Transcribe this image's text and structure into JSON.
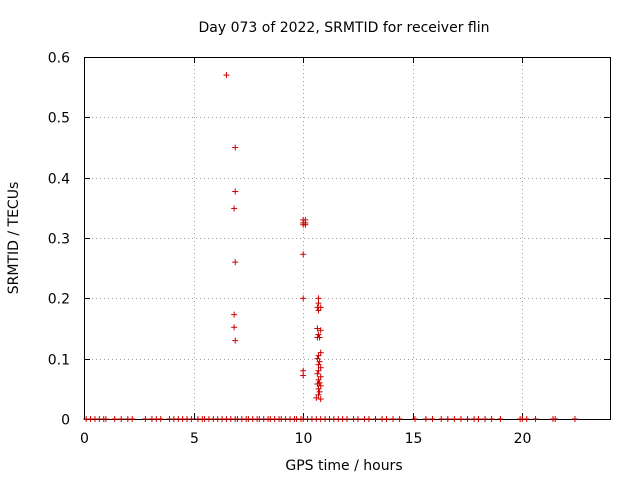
{
  "chart_data": {
    "type": "scatter",
    "title": "Day 073 of 2022, SRMTID for receiver flin",
    "xlabel": "GPS time / hours",
    "ylabel": "SRMTID / TECUs",
    "xlim": [
      0,
      24
    ],
    "ylim": [
      0,
      0.6
    ],
    "xticks": [
      0,
      5,
      10,
      15,
      20
    ],
    "yticks": [
      0,
      0.1,
      0.2,
      0.3,
      0.4,
      0.5,
      0.6
    ],
    "grid": true,
    "marker": "+",
    "color": "#cc0000",
    "series": [
      {
        "name": "SRMTID",
        "points": [
          [
            6.5,
            0.57
          ],
          [
            6.9,
            0.45
          ],
          [
            6.9,
            0.377
          ],
          [
            6.85,
            0.349
          ],
          [
            6.9,
            0.26
          ],
          [
            6.85,
            0.173
          ],
          [
            6.85,
            0.152
          ],
          [
            6.9,
            0.13
          ],
          [
            10.0,
            0.33
          ],
          [
            10.1,
            0.33
          ],
          [
            10.0,
            0.325
          ],
          [
            10.1,
            0.325
          ],
          [
            10.0,
            0.322
          ],
          [
            10.1,
            0.322
          ],
          [
            10.0,
            0.273
          ],
          [
            10.0,
            0.2
          ],
          [
            10.0,
            0.08
          ],
          [
            10.0,
            0.072
          ],
          [
            10.7,
            0.2
          ],
          [
            10.7,
            0.192
          ],
          [
            10.65,
            0.185
          ],
          [
            10.8,
            0.185
          ],
          [
            10.7,
            0.18
          ],
          [
            10.65,
            0.15
          ],
          [
            10.8,
            0.147
          ],
          [
            10.7,
            0.14
          ],
          [
            10.75,
            0.135
          ],
          [
            10.65,
            0.135
          ],
          [
            10.8,
            0.11
          ],
          [
            10.7,
            0.105
          ],
          [
            10.65,
            0.1
          ],
          [
            10.75,
            0.095
          ],
          [
            10.7,
            0.09
          ],
          [
            10.8,
            0.085
          ],
          [
            10.7,
            0.08
          ],
          [
            10.65,
            0.075
          ],
          [
            10.8,
            0.07
          ],
          [
            10.7,
            0.065
          ],
          [
            10.75,
            0.06
          ],
          [
            10.65,
            0.058
          ],
          [
            10.8,
            0.055
          ],
          [
            10.7,
            0.05
          ],
          [
            10.75,
            0.045
          ],
          [
            10.7,
            0.04
          ],
          [
            10.6,
            0.035
          ],
          [
            10.8,
            0.033
          ],
          [
            0.1,
            0
          ],
          [
            0.3,
            0
          ],
          [
            0.5,
            0
          ],
          [
            0.7,
            0
          ],
          [
            0.9,
            0
          ],
          [
            1.0,
            0
          ],
          [
            1.4,
            0
          ],
          [
            1.7,
            0
          ],
          [
            2.0,
            0
          ],
          [
            2.2,
            0
          ],
          [
            2.8,
            0
          ],
          [
            3.1,
            0
          ],
          [
            3.3,
            0
          ],
          [
            3.5,
            0
          ],
          [
            3.9,
            0
          ],
          [
            4.1,
            0
          ],
          [
            4.3,
            0
          ],
          [
            4.5,
            0
          ],
          [
            4.7,
            0
          ],
          [
            4.9,
            0
          ],
          [
            5.2,
            0
          ],
          [
            5.4,
            0
          ],
          [
            5.5,
            0
          ],
          [
            5.7,
            0
          ],
          [
            5.9,
            0
          ],
          [
            6.1,
            0
          ],
          [
            6.3,
            0
          ],
          [
            6.5,
            0
          ],
          [
            6.7,
            0
          ],
          [
            6.9,
            0
          ],
          [
            7.0,
            0
          ],
          [
            7.2,
            0
          ],
          [
            7.4,
            0
          ],
          [
            7.5,
            0
          ],
          [
            7.7,
            0
          ],
          [
            7.9,
            0
          ],
          [
            8.0,
            0
          ],
          [
            8.2,
            0
          ],
          [
            8.4,
            0
          ],
          [
            8.5,
            0
          ],
          [
            8.7,
            0
          ],
          [
            8.9,
            0
          ],
          [
            9.0,
            0
          ],
          [
            9.2,
            0
          ],
          [
            9.4,
            0
          ],
          [
            9.6,
            0
          ],
          [
            9.7,
            0
          ],
          [
            9.9,
            0
          ],
          [
            10.0,
            0
          ],
          [
            10.2,
            0
          ],
          [
            10.4,
            0
          ],
          [
            10.6,
            0
          ],
          [
            10.8,
            0
          ],
          [
            11.0,
            0
          ],
          [
            11.2,
            0
          ],
          [
            11.4,
            0
          ],
          [
            11.6,
            0
          ],
          [
            11.8,
            0
          ],
          [
            12.0,
            0
          ],
          [
            12.3,
            0
          ],
          [
            12.5,
            0
          ],
          [
            12.8,
            0
          ],
          [
            13.0,
            0
          ],
          [
            13.3,
            0
          ],
          [
            13.6,
            0
          ],
          [
            13.8,
            0
          ],
          [
            14.1,
            0
          ],
          [
            14.4,
            0
          ],
          [
            15.1,
            0
          ],
          [
            15.6,
            0
          ],
          [
            15.9,
            0
          ],
          [
            16.3,
            0
          ],
          [
            16.6,
            0
          ],
          [
            16.9,
            0
          ],
          [
            17.2,
            0
          ],
          [
            17.5,
            0
          ],
          [
            17.8,
            0
          ],
          [
            18.0,
            0
          ],
          [
            18.3,
            0
          ],
          [
            18.6,
            0
          ],
          [
            19.0,
            0
          ],
          [
            19.9,
            0
          ],
          [
            20.0,
            0
          ],
          [
            20.2,
            0
          ],
          [
            20.6,
            0
          ],
          [
            21.4,
            0
          ],
          [
            21.5,
            0
          ],
          [
            22.4,
            0
          ]
        ]
      }
    ]
  }
}
